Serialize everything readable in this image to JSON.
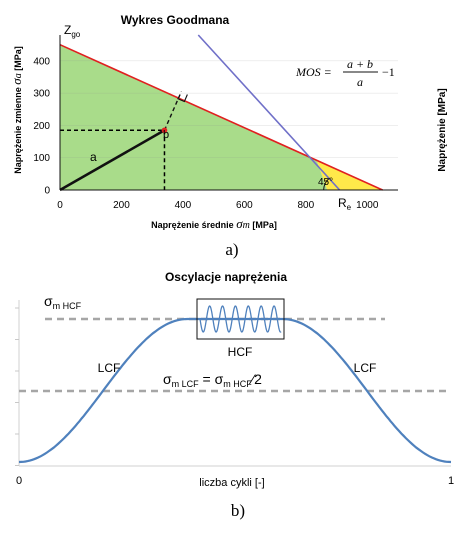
{
  "chart_data": [
    {
      "type": "area",
      "title": "Wykres Goodmana",
      "xlabel_text": "Naprężenie średnie ",
      "xlabel_symbol": "σ",
      "xlabel_sub": "m",
      "xlabel_unit": " [MPa]",
      "ylabel_text": "Naprężenie zmienne ",
      "ylabel_symbol": "σ",
      "ylabel_sub": "a",
      "ylabel_unit": "  [MPa]",
      "right_label": "Naprężenie [MPa]",
      "xlim": [
        0,
        1100
      ],
      "ylim": [
        0,
        480
      ],
      "x_ticks": [
        0,
        200,
        400,
        600,
        800,
        1000
      ],
      "y_ticks": [
        0,
        100,
        200,
        300,
        400
      ],
      "goodman_line": {
        "x": [
          0,
          1050
        ],
        "y": [
          450,
          0
        ]
      },
      "yield_line": {
        "x": [
          450,
          910
        ],
        "y": [
          480,
          0
        ]
      },
      "safe_region": {
        "x": [
          0,
          0,
          835,
          870
        ],
        "y": [
          0,
          450,
          93,
          0
        ]
      },
      "yellow_region": {
        "x": [
          835,
          870,
          1050
        ],
        "y": [
          93,
          0,
          0
        ]
      },
      "point": {
        "x": 340,
        "y": 185
      },
      "segment_a": {
        "label": "a",
        "x": [
          0,
          340
        ],
        "y": [
          0,
          185
        ]
      },
      "segment_b": {
        "label": "b",
        "x": [
          340,
          395
        ],
        "y": [
          185,
          305
        ]
      },
      "angle_label": "45°",
      "zgo_label": "Z",
      "zgo_sub": "go",
      "re_label": "R",
      "re_sub": "e",
      "formula": {
        "lhs": "MOS =",
        "numerator": "a + b",
        "denominator": "a",
        "tail": "−1"
      },
      "line_colors": {
        "goodman": "#e02020",
        "yield": "#7070c8",
        "safe": "#a9dc8a",
        "yellow": "#ffe94a",
        "segment": "#111111",
        "dashed": "#000000",
        "point": "#e02020"
      }
    },
    {
      "type": "line",
      "title": "Oscylacje naprężenia",
      "xlabel": "liczba cykli [-]",
      "x_ticks": [
        "0",
        "1"
      ],
      "curve_color": "#4f81bd",
      "dashed_color": "#a6a6a6",
      "hcf_line_label_main": "σ",
      "hcf_line_label_sub": "m HCF",
      "lcf_line_label_main": "σ",
      "lcf_line_label_sub": "m LCF",
      "lcf_eq": " = σ",
      "lcf_eq_sub": "m HCF",
      "lcf_eq_tail": "⁄2",
      "hcf_box_label": "HCF",
      "lcf_left_label": "LCF",
      "lcf_right_label": "LCF"
    }
  ],
  "captions": {
    "a": "a)",
    "b": "b)"
  }
}
